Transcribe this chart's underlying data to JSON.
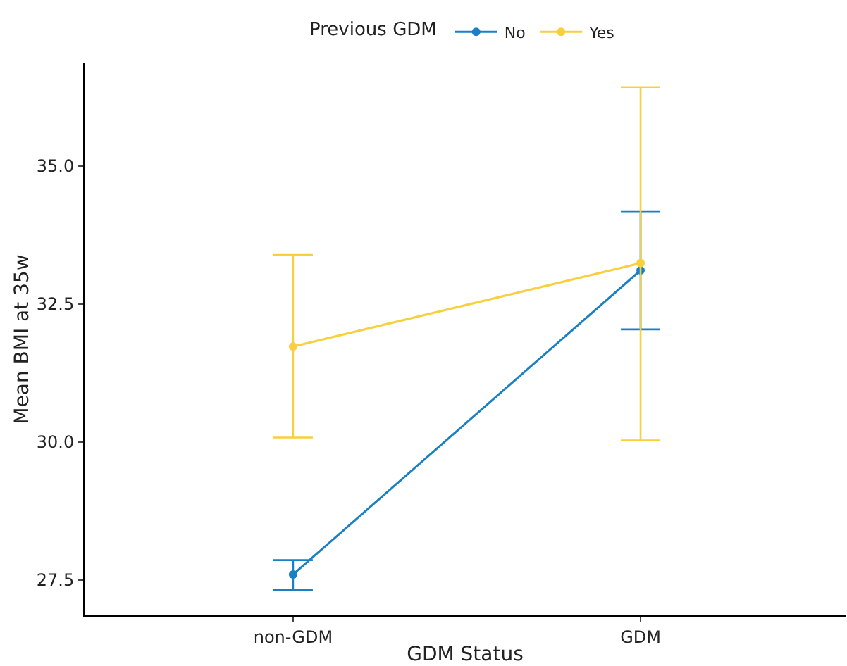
{
  "chart_data": {
    "type": "line",
    "xlabel": "GDM Status",
    "ylabel": "Mean BMI at 35w",
    "legend_title": "Previous GDM",
    "legend": "top",
    "grid": false,
    "marker": "circle",
    "line_style": "solid",
    "categories": [
      "non-GDM",
      "GDM"
    ],
    "ylim": [
      26.86,
      36.86
    ],
    "yticks": [
      {
        "value": 27.5,
        "label": "27.5"
      },
      {
        "value": 30,
        "label": "30.0"
      },
      {
        "value": 32.5,
        "label": "32.5"
      },
      {
        "value": 35,
        "label": "35.0"
      }
    ],
    "series": [
      {
        "name": "No",
        "color": "#1a80c4",
        "values": [
          27.6,
          33.11
        ],
        "errors": [
          [
            27.32,
            27.86
          ],
          [
            32.04,
            34.18
          ]
        ]
      },
      {
        "name": "Yes",
        "color": "#f7d03c",
        "values": [
          31.73,
          33.24
        ],
        "errors": [
          [
            30.08,
            33.39
          ],
          [
            30.03,
            36.43
          ]
        ]
      }
    ]
  }
}
